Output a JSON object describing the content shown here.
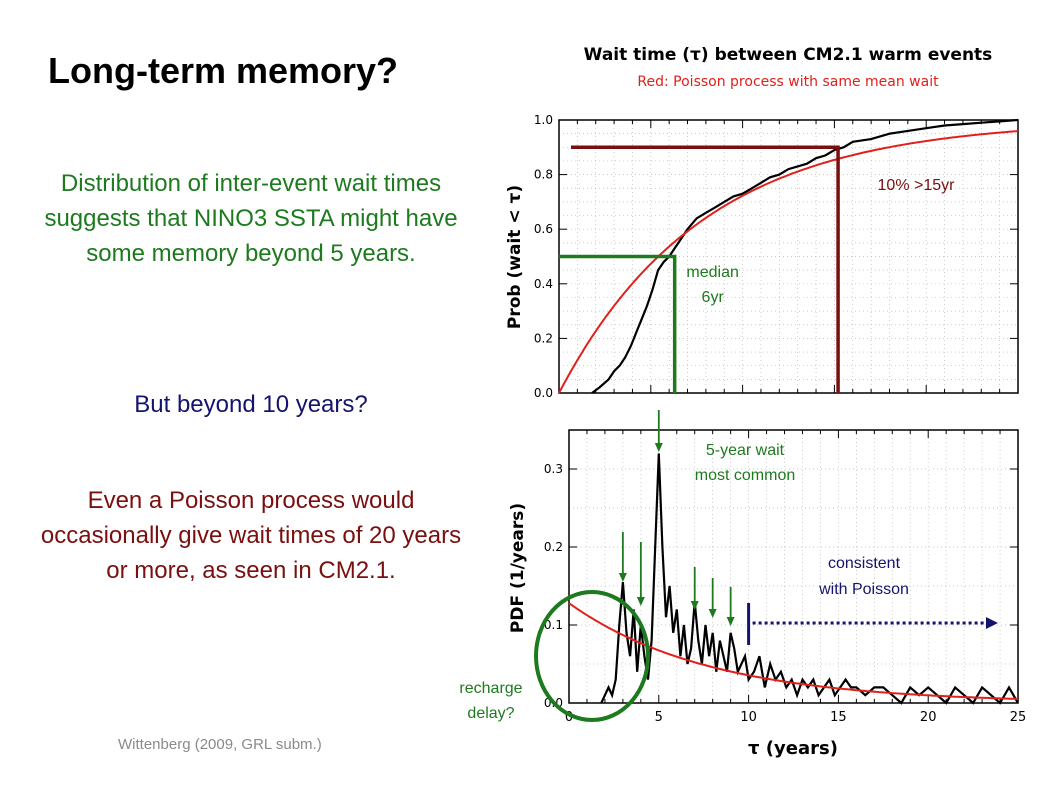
{
  "slide": {
    "title": "Long-term memory?",
    "text_green": "Distribution of inter-event wait times suggests that NINO3 SSTA might have some memory beyond 5 years.",
    "text_navy": "But beyond 10 years?",
    "text_maroon": "Even a Poisson process would occasionally give wait times of 20 years or more, as seen in CM2.1.",
    "citation": "Wittenberg (2009, GRL subm.)"
  },
  "colors": {
    "green": "#1e7a1e",
    "navy": "#14146e",
    "maroon": "#7a0f0f",
    "red": "#e0201b",
    "black": "#000000"
  },
  "chart_data": [
    {
      "type": "line",
      "title": "Wait time (τ) between CM2.1 warm events",
      "subtitle": "Red: Poisson process with same mean wait",
      "ylabel": "Prob (wait < τ)",
      "xlim": [
        0,
        25
      ],
      "ylim": [
        0,
        1
      ],
      "y_ticks": [
        "0.0",
        "0.2",
        "0.4",
        "0.6",
        "0.8",
        "1.0"
      ],
      "series": [
        {
          "color": "#000000",
          "x": [
            1.8,
            2.2,
            2.7,
            3.0,
            3.3,
            3.6,
            3.9,
            4.2,
            4.5,
            4.8,
            5.1,
            5.4,
            5.7,
            6.0,
            6.3,
            6.6,
            7.0,
            7.5,
            8.0,
            8.5,
            9.0,
            9.5,
            10,
            10.5,
            11,
            11.5,
            12,
            12.5,
            13,
            13.5,
            14,
            14.5,
            15,
            15.5,
            16,
            17,
            18,
            19,
            20,
            21,
            22,
            23,
            24,
            25
          ],
          "y": [
            0.0,
            0.02,
            0.05,
            0.08,
            0.1,
            0.13,
            0.17,
            0.22,
            0.27,
            0.32,
            0.38,
            0.45,
            0.48,
            0.5,
            0.53,
            0.56,
            0.6,
            0.64,
            0.66,
            0.68,
            0.7,
            0.72,
            0.73,
            0.75,
            0.77,
            0.79,
            0.8,
            0.82,
            0.83,
            0.84,
            0.86,
            0.87,
            0.89,
            0.9,
            0.92,
            0.93,
            0.95,
            0.96,
            0.97,
            0.98,
            0.985,
            0.99,
            0.995,
            1.0
          ]
        },
        {
          "color": "#e0201b",
          "function": "1 - exp(-x/7.8)"
        }
      ],
      "annotations": [
        {
          "text": "median",
          "text2": "6yr",
          "x": 6.3,
          "y": 0.5,
          "color": "#1e7a1e"
        },
        {
          "text": "10% >15yr",
          "x": 15.2,
          "y": 0.9,
          "color": "#7a0f0f"
        }
      ]
    },
    {
      "type": "line",
      "xlabel": "τ (years)",
      "ylabel": "PDF (1/years)",
      "xlim": [
        0,
        25
      ],
      "ylim": [
        0,
        0.35
      ],
      "x_ticks": [
        "0",
        "5",
        "10",
        "15",
        "20",
        "25"
      ],
      "y_ticks": [
        "0.0",
        "0.1",
        "0.2",
        "0.3"
      ],
      "series": [
        {
          "color": "#000000",
          "x": [
            1.8,
            2.0,
            2.2,
            2.4,
            2.6,
            2.8,
            3.0,
            3.2,
            3.4,
            3.6,
            3.8,
            4.0,
            4.2,
            4.4,
            4.6,
            4.8,
            5.0,
            5.2,
            5.4,
            5.6,
            5.8,
            6.0,
            6.2,
            6.4,
            6.6,
            6.8,
            7.0,
            7.2,
            7.4,
            7.6,
            7.8,
            8.0,
            8.2,
            8.4,
            8.6,
            8.8,
            9.0,
            9.2,
            9.4,
            9.6,
            9.8,
            10.0,
            10.3,
            10.6,
            10.9,
            11.2,
            11.5,
            11.8,
            12.1,
            12.4,
            12.7,
            13.0,
            13.3,
            13.6,
            13.9,
            14.2,
            14.5,
            14.8,
            15.1,
            15.4,
            15.7,
            16.0,
            16.5,
            17.0,
            17.5,
            18.0,
            18.5,
            19.0,
            19.5,
            20.0,
            20.5,
            21.0,
            21.5,
            22.0,
            22.5,
            23.0,
            23.5,
            24.0,
            24.5,
            25.0
          ],
          "y": [
            0.0,
            0.01,
            0.02,
            0.01,
            0.03,
            0.1,
            0.155,
            0.09,
            0.06,
            0.12,
            0.04,
            0.1,
            0.06,
            0.03,
            0.08,
            0.2,
            0.32,
            0.2,
            0.11,
            0.15,
            0.09,
            0.12,
            0.06,
            0.1,
            0.05,
            0.07,
            0.13,
            0.08,
            0.05,
            0.1,
            0.06,
            0.09,
            0.04,
            0.08,
            0.06,
            0.04,
            0.09,
            0.07,
            0.04,
            0.05,
            0.06,
            0.03,
            0.04,
            0.06,
            0.02,
            0.05,
            0.03,
            0.04,
            0.02,
            0.03,
            0.01,
            0.03,
            0.02,
            0.03,
            0.01,
            0.02,
            0.03,
            0.01,
            0.02,
            0.03,
            0.02,
            0.02,
            0.01,
            0.02,
            0.02,
            0.01,
            0.0,
            0.02,
            0.01,
            0.02,
            0.01,
            0.0,
            0.02,
            0.01,
            0.0,
            0.02,
            0.01,
            0.0,
            0.02,
            0.0
          ]
        },
        {
          "color": "#e0201b",
          "function": "0.128 * exp(-x/7.8)"
        }
      ],
      "annotations": [
        {
          "text": "5-year wait",
          "text2": "most common",
          "x": 5.0,
          "y": 0.32,
          "color": "#1e7a1e"
        },
        {
          "text": "consistent",
          "text2": "with Poisson",
          "x": 10.0,
          "y": 0.1,
          "color": "#14146e"
        },
        {
          "text": "recharge",
          "text2": "delay?",
          "x": 1.2,
          "y": 0.05,
          "color": "#1e7a1e"
        }
      ],
      "arrow_x": [
        3.0,
        4.0,
        7.0,
        8.0,
        9.0
      ]
    }
  ]
}
